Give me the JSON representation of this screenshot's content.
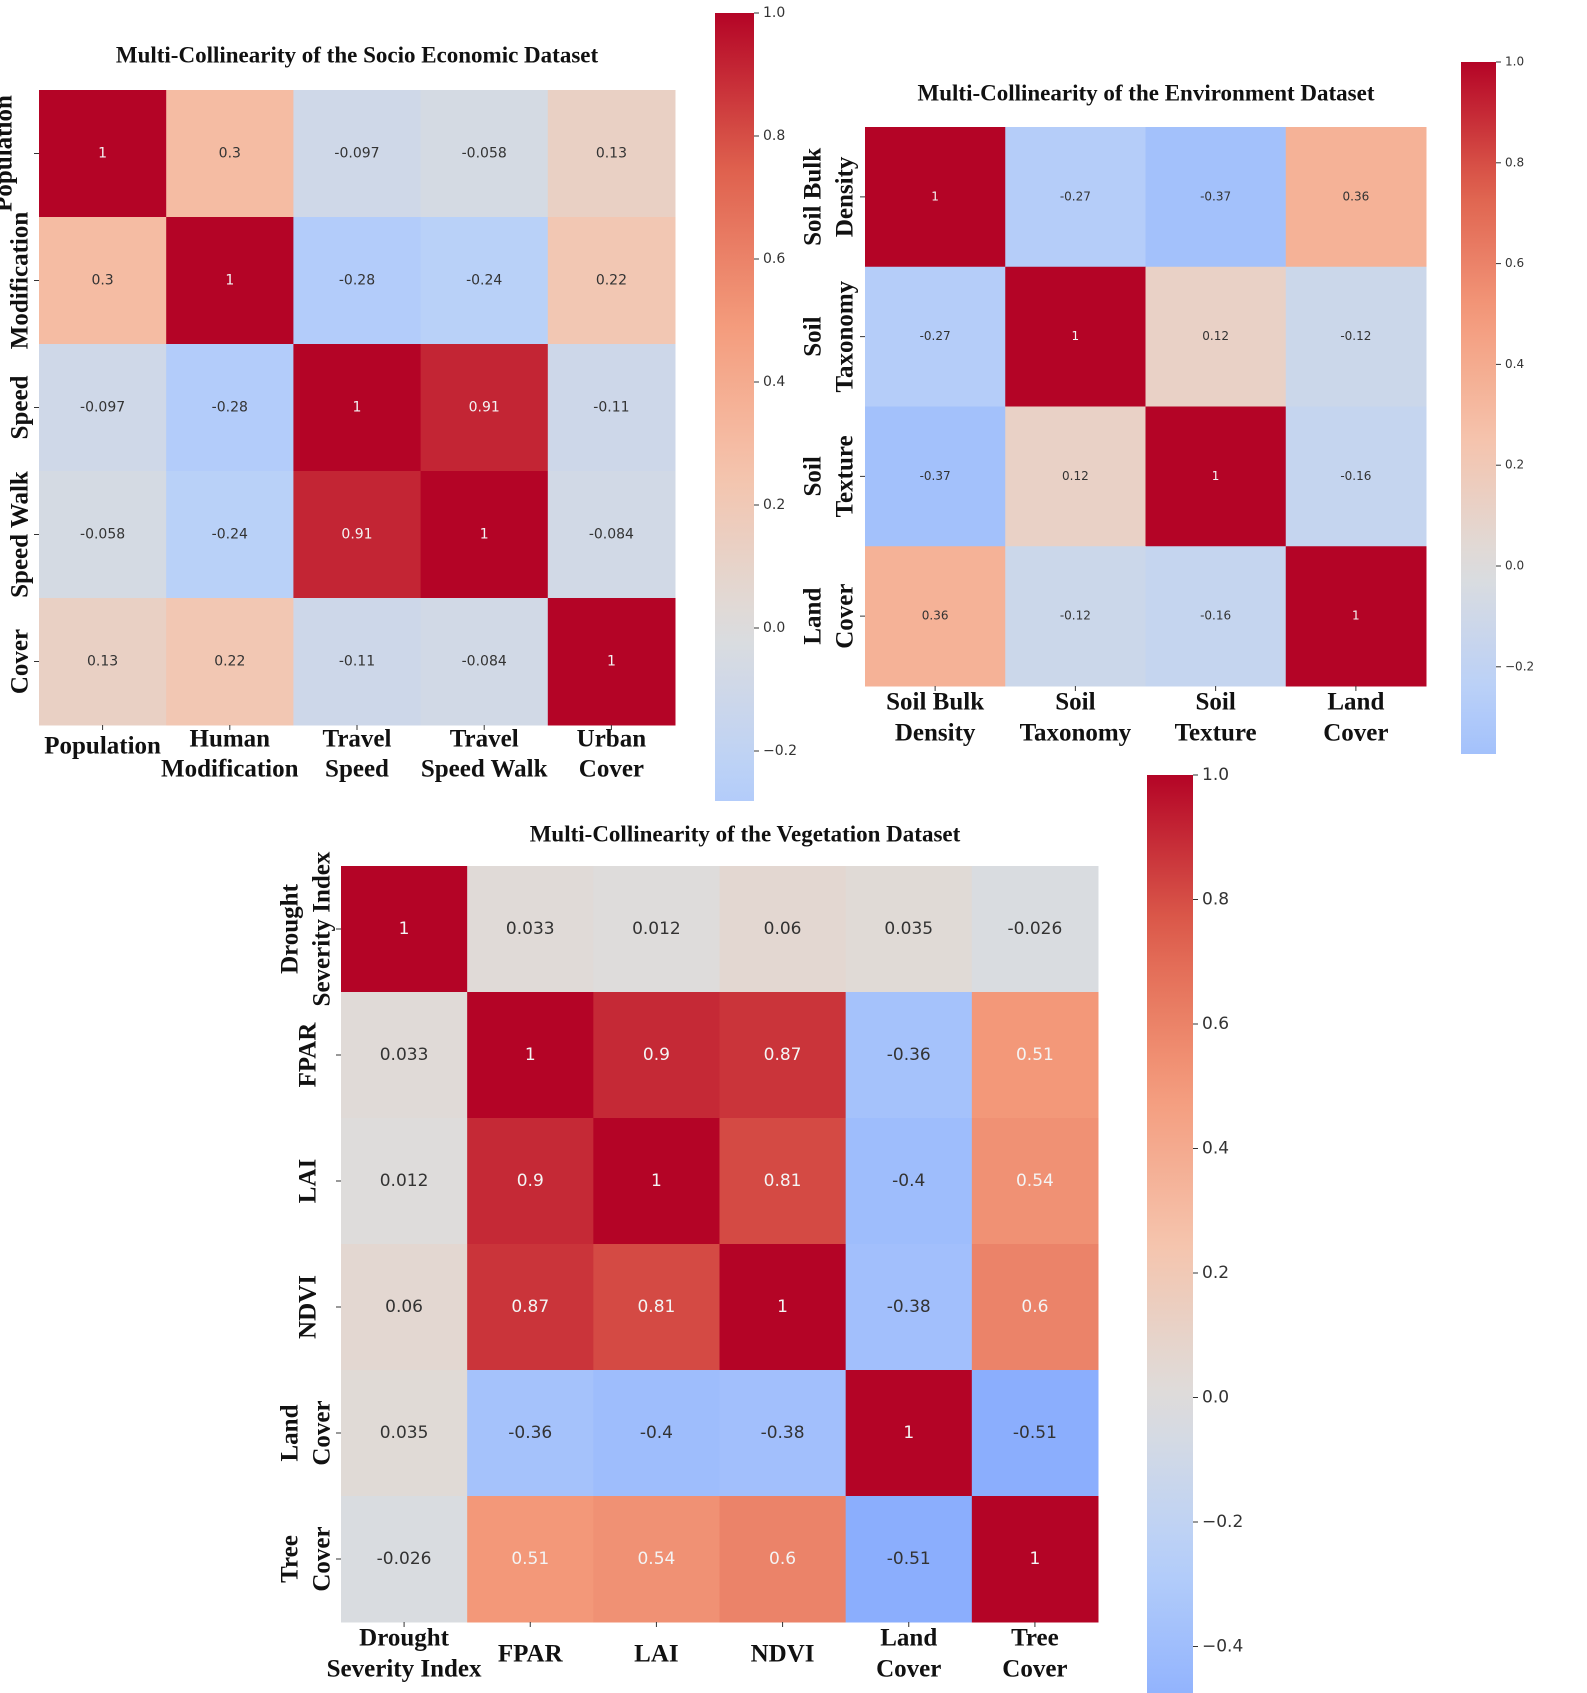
{
  "chart_data": [
    {
      "type": "heatmap",
      "title": "Multi-Collinearity of the Socio Economic Dataset",
      "colormap": "coolwarm",
      "x_labels": [
        [
          "Population"
        ],
        [
          "Human",
          "Modification"
        ],
        [
          "Travel",
          "Speed"
        ],
        [
          "Travel",
          "Speed Walk"
        ],
        [
          "Urban",
          "Cover"
        ]
      ],
      "y_labels": [
        [
          "Population"
        ],
        [
          "Modification"
        ],
        [
          "Speed"
        ],
        [
          "Speed Walk"
        ],
        [
          "Cover"
        ]
      ],
      "values": [
        [
          1,
          0.3,
          -0.097,
          -0.058,
          0.13
        ],
        [
          0.3,
          1,
          -0.28,
          -0.24,
          0.22
        ],
        [
          -0.097,
          -0.28,
          1,
          0.91,
          -0.11
        ],
        [
          -0.058,
          -0.24,
          0.91,
          1,
          -0.084
        ],
        [
          0.13,
          0.22,
          -0.11,
          -0.084,
          1
        ]
      ],
      "colorbar": {
        "range": [
          -0.28,
          1.0
        ],
        "ticks": [
          "1.0",
          "0.8",
          "0.6",
          "0.4",
          "0.2",
          "0.0",
          "−0.2"
        ]
      }
    },
    {
      "type": "heatmap",
      "title": "Multi-Collinearity of the Environment Dataset",
      "colormap": "coolwarm",
      "x_labels": [
        [
          "Soil Bulk",
          "Density"
        ],
        [
          "Soil",
          "Taxonomy"
        ],
        [
          "Soil",
          "Texture"
        ],
        [
          "Land",
          "Cover"
        ]
      ],
      "y_labels": [
        [
          "Soil Bulk",
          "Density"
        ],
        [
          "Soil",
          "Taxonomy"
        ],
        [
          "Soil",
          "Texture"
        ],
        [
          "Land",
          "Cover"
        ]
      ],
      "values": [
        [
          1,
          -0.27,
          -0.37,
          0.36
        ],
        [
          -0.27,
          1,
          0.12,
          -0.12
        ],
        [
          -0.37,
          0.12,
          1,
          -0.16
        ],
        [
          0.36,
          -0.12,
          -0.16,
          1
        ]
      ],
      "colorbar": {
        "range": [
          -0.37,
          1.0
        ],
        "ticks": [
          "1.0",
          "0.8",
          "0.6",
          "0.4",
          "0.2",
          "0.0",
          "−0.2"
        ]
      }
    },
    {
      "type": "heatmap",
      "title": "Multi-Collinearity of the Vegetation Dataset",
      "colormap": "coolwarm",
      "x_labels": [
        [
          "Drought",
          "Severity Index"
        ],
        [
          "FPAR"
        ],
        [
          "LAI"
        ],
        [
          "NDVI"
        ],
        [
          "Land",
          "Cover"
        ],
        [
          "Tree",
          "Cover"
        ]
      ],
      "y_labels": [
        [
          "Drought",
          "Severity Index"
        ],
        [
          "FPAR"
        ],
        [
          "LAI"
        ],
        [
          "NDVI"
        ],
        [
          "Land",
          "Cover"
        ],
        [
          "Tree",
          "Cover"
        ]
      ],
      "values": [
        [
          1,
          0.033,
          0.012,
          0.06,
          0.035,
          -0.026
        ],
        [
          0.033,
          1,
          0.9,
          0.87,
          -0.36,
          0.51
        ],
        [
          0.012,
          0.9,
          1,
          0.81,
          -0.4,
          0.54
        ],
        [
          0.06,
          0.87,
          0.81,
          1,
          -0.38,
          0.6
        ],
        [
          0.035,
          -0.36,
          -0.4,
          -0.38,
          1,
          -0.51
        ],
        [
          -0.026,
          0.51,
          0.54,
          0.6,
          -0.51,
          1
        ]
      ],
      "colorbar": {
        "range": [
          -0.51,
          1.0
        ],
        "ticks": [
          "1.0",
          "0.8",
          "0.6",
          "0.4",
          "0.2",
          "0.0",
          "−0.2",
          "−0.4"
        ]
      }
    }
  ]
}
